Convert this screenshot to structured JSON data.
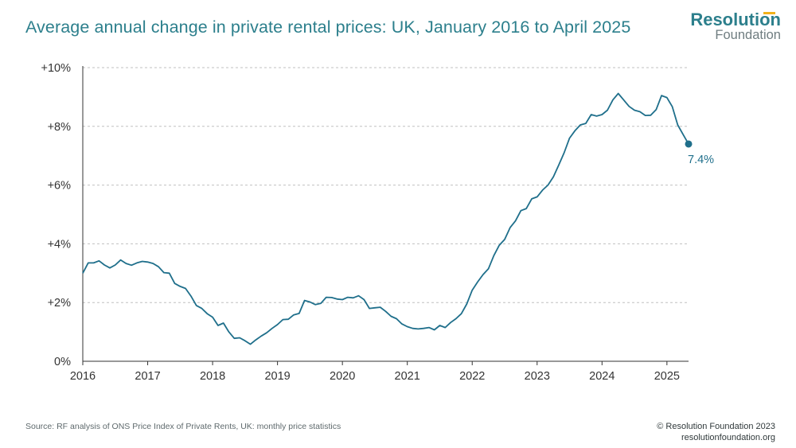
{
  "header": {
    "title": "Average annual change in private rental prices: UK, January 2016 to April 2025",
    "logo_top": "Resolution",
    "logo_bottom": "Foundation"
  },
  "footer": {
    "source": "Source: RF analysis of ONS Price Index of Private Rents, UK: monthly price statistics",
    "copyright": "© Resolution Foundation 2023",
    "website": "resolutionfoundation.org"
  },
  "colors": {
    "line": "#1f6f8b",
    "title": "#2c7f8c",
    "grid": "#c0c0c0",
    "axis": "#333333",
    "logo_accent": "#f2b21b"
  },
  "chart_data": {
    "type": "line",
    "title": "Average annual change in private rental prices: UK, January 2016 to April 2025",
    "xlabel": "",
    "ylabel": "",
    "x_start": "2016-01",
    "x_end": "2025-04",
    "xlim": [
      2016.0,
      2025.333
    ],
    "ylim": [
      0,
      10
    ],
    "grid": true,
    "x_ticks": [
      2016,
      2017,
      2018,
      2019,
      2020,
      2021,
      2022,
      2023,
      2024,
      2025
    ],
    "x_tick_labels": [
      "2016",
      "2017",
      "2018",
      "2019",
      "2020",
      "2021",
      "2022",
      "2023",
      "2024",
      "2025"
    ],
    "y_ticks": [
      0,
      2,
      4,
      6,
      8,
      10
    ],
    "y_tick_labels": [
      "0%",
      "+2%",
      "+4%",
      "+6%",
      "+8%",
      "+10%"
    ],
    "end_label": "7.4%",
    "series": [
      {
        "name": "Average annual change in private rental prices",
        "frequency": "monthly",
        "values": [
          3.0,
          3.35,
          3.35,
          3.42,
          3.28,
          3.18,
          3.28,
          3.45,
          3.33,
          3.27,
          3.35,
          3.4,
          3.38,
          3.33,
          3.22,
          3.02,
          3.0,
          2.65,
          2.55,
          2.48,
          2.22,
          1.9,
          1.8,
          1.62,
          1.5,
          1.22,
          1.3,
          1.0,
          0.78,
          0.8,
          0.7,
          0.58,
          0.73,
          0.86,
          0.97,
          1.12,
          1.25,
          1.42,
          1.43,
          1.58,
          1.63,
          2.07,
          2.02,
          1.93,
          1.97,
          2.18,
          2.17,
          2.12,
          2.1,
          2.18,
          2.16,
          2.23,
          2.1,
          1.8,
          1.82,
          1.84,
          1.7,
          1.53,
          1.45,
          1.27,
          1.18,
          1.12,
          1.1,
          1.12,
          1.15,
          1.07,
          1.22,
          1.15,
          1.32,
          1.45,
          1.62,
          1.95,
          2.42,
          2.7,
          2.95,
          3.15,
          3.6,
          3.95,
          4.15,
          4.55,
          4.78,
          5.13,
          5.2,
          5.53,
          5.6,
          5.83,
          6.0,
          6.28,
          6.68,
          7.1,
          7.6,
          7.85,
          8.05,
          8.1,
          8.4,
          8.35,
          8.4,
          8.55,
          8.9,
          9.12,
          8.9,
          8.68,
          8.55,
          8.5,
          8.37,
          8.38,
          8.57,
          9.05,
          8.98,
          8.67,
          8.05,
          7.72,
          7.4
        ]
      }
    ]
  }
}
